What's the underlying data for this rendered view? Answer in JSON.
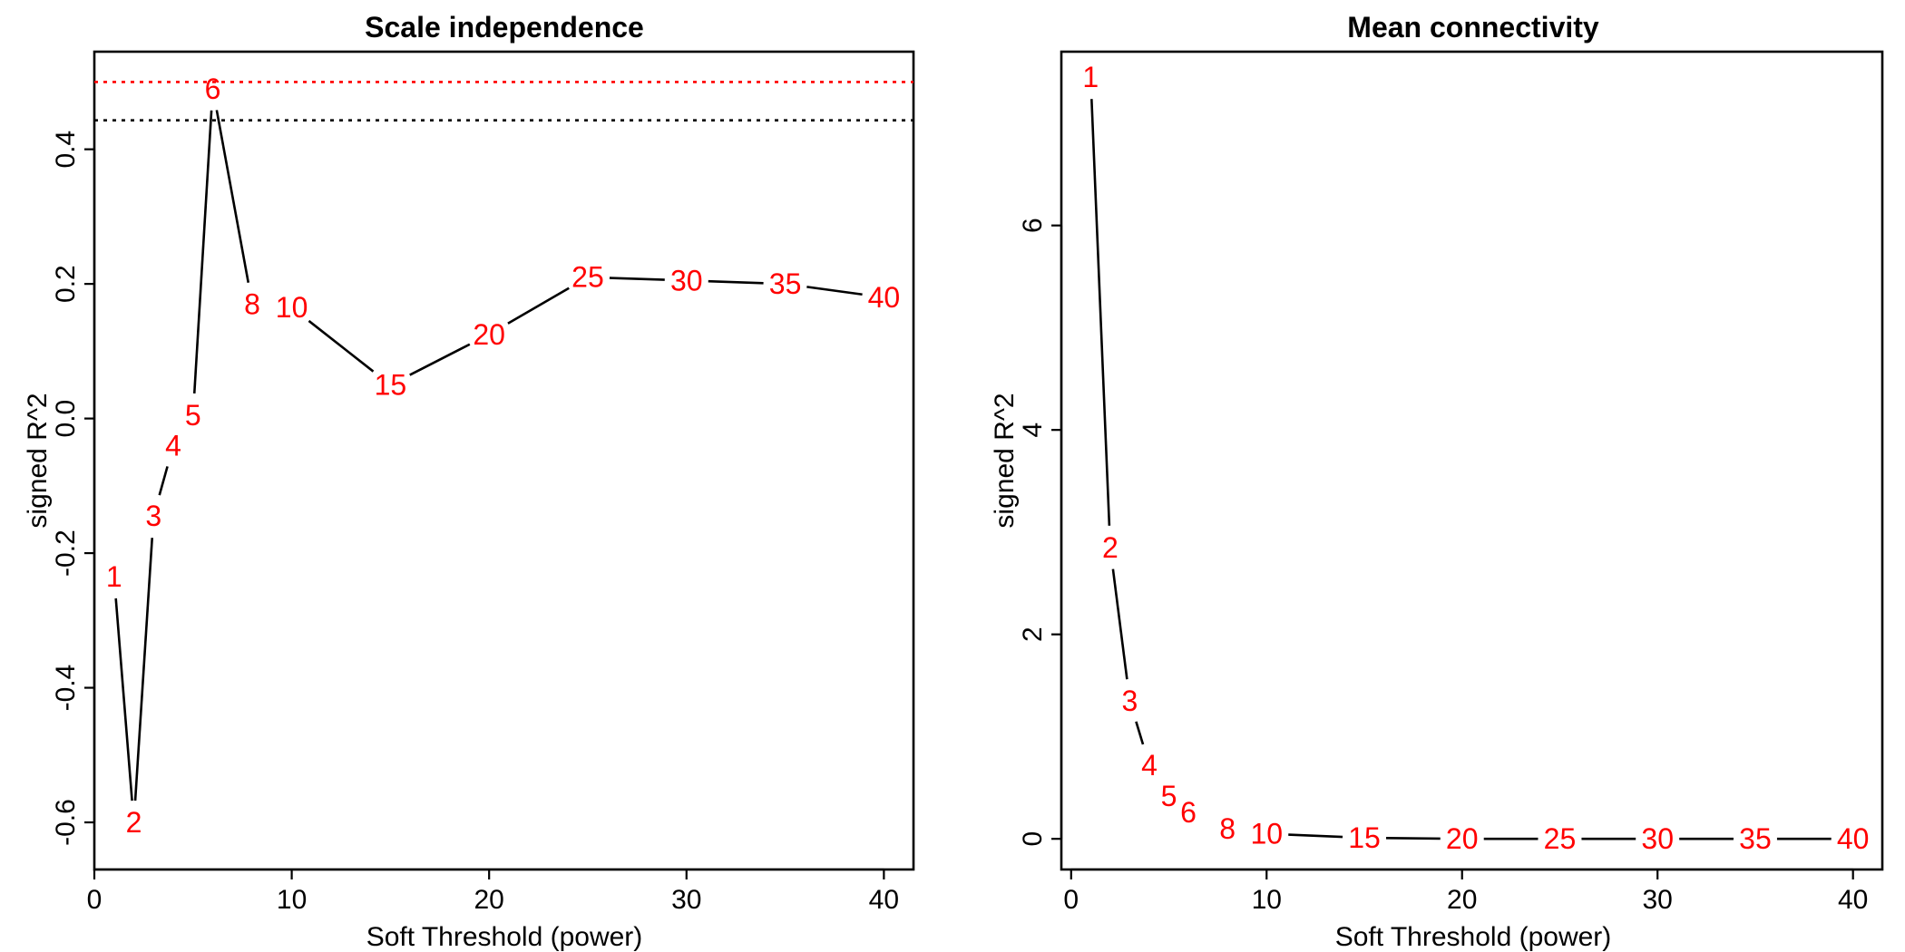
{
  "chart_data": [
    {
      "type": "line",
      "title": "Scale independence",
      "xlabel": "Soft Threshold (power)",
      "ylabel": "signed R^2",
      "xlim": [
        0,
        41.5
      ],
      "ylim": [
        -0.67,
        0.545
      ],
      "xticks": [
        0,
        10,
        20,
        30,
        40
      ],
      "xtick_labels": [
        "0",
        "10",
        "20",
        "30",
        "40"
      ],
      "yticks": [
        -0.6,
        -0.4,
        -0.2,
        0.0,
        0.2,
        0.4
      ],
      "ytick_labels": [
        "-0.6",
        "-0.4",
        "-0.2",
        "0.0",
        "0.2",
        "0.4"
      ],
      "grid": false,
      "point_labels_color": "#ff0000",
      "reference_lines": [
        {
          "y": 0.5,
          "color": "#ff0000",
          "style": "dotted"
        },
        {
          "y": 0.443,
          "color": "#000000",
          "style": "dotted"
        }
      ],
      "x": [
        1,
        2,
        3,
        4,
        5,
        6,
        8,
        10,
        15,
        20,
        25,
        30,
        35,
        40
      ],
      "values": [
        -0.235,
        -0.6,
        -0.145,
        -0.04,
        0.005,
        0.49,
        0.17,
        0.165,
        0.05,
        0.125,
        0.21,
        0.205,
        0.2,
        0.18
      ],
      "labels": [
        "1",
        "2",
        "3",
        "4",
        "5",
        "6",
        "8",
        "10",
        "15",
        "20",
        "25",
        "30",
        "35",
        "40"
      ]
    },
    {
      "type": "line",
      "title": "Mean connectivity",
      "xlabel": "Soft Threshold (power)",
      "ylabel": "signed R^2",
      "xlim": [
        -0.5,
        41.5
      ],
      "ylim": [
        -0.3,
        7.7
      ],
      "xticks": [
        0,
        10,
        20,
        30,
        40
      ],
      "xtick_labels": [
        "0",
        "10",
        "20",
        "30",
        "40"
      ],
      "yticks": [
        0,
        2,
        4,
        6
      ],
      "ytick_labels": [
        "0",
        "2",
        "4",
        "6"
      ],
      "grid": false,
      "point_labels_color": "#ff0000",
      "reference_lines": [],
      "x": [
        1,
        2,
        3,
        4,
        5,
        6,
        8,
        10,
        15,
        20,
        25,
        30,
        35,
        40
      ],
      "values": [
        7.45,
        2.85,
        1.35,
        0.72,
        0.42,
        0.26,
        0.1,
        0.05,
        0.01,
        0.0,
        0.0,
        0.0,
        0.0,
        0.0
      ],
      "labels": [
        "1",
        "2",
        "3",
        "4",
        "5",
        "6",
        "8",
        "10",
        "15",
        "20",
        "25",
        "30",
        "35",
        "40"
      ]
    }
  ]
}
